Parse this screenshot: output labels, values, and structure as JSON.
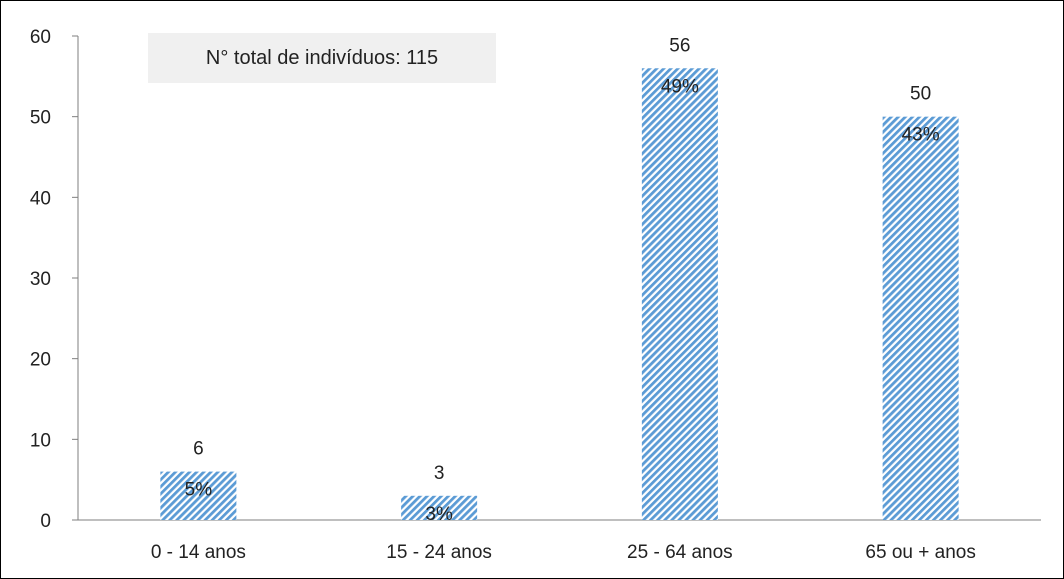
{
  "chart_data": {
    "type": "bar",
    "categories": [
      "0 - 14 anos",
      "15 - 24 anos",
      "25 - 64 anos",
      "65 ou + anos"
    ],
    "values": [
      6,
      3,
      56,
      50
    ],
    "percent_labels": [
      "5%",
      "3%",
      "49%",
      "43%"
    ],
    "yticks": [
      "0",
      "10",
      "20",
      "30",
      "40",
      "50",
      "60"
    ],
    "ylim": [
      0,
      60
    ],
    "title": "",
    "xlabel": "",
    "ylabel": "",
    "annotation": "N° total de indivíduos: 115",
    "grid": false,
    "bar_style": "diagonal-hatch",
    "colors": {
      "bar": "#5b9bd5",
      "axis": "#7f7f7f",
      "annotation_bg": "#f0f0f0"
    }
  }
}
